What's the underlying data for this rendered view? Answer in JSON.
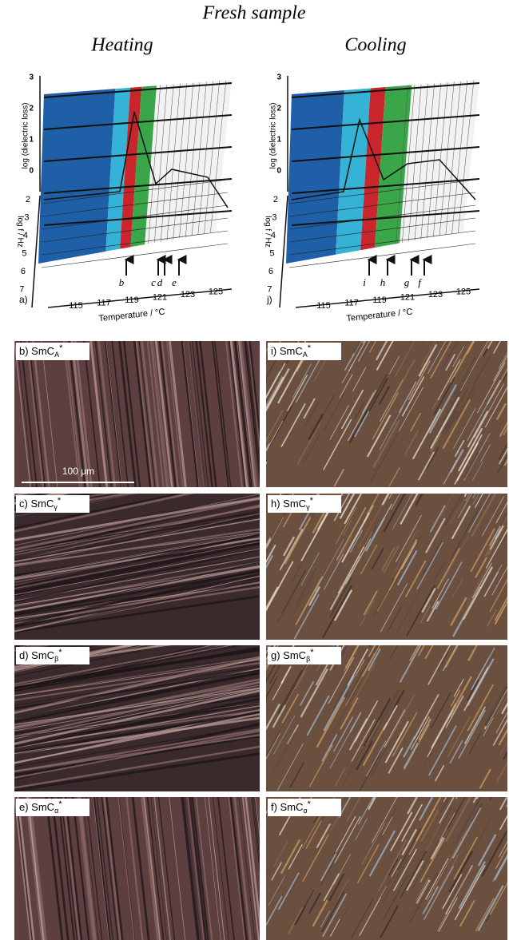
{
  "header": {
    "title": "Fresh sample",
    "columns": [
      "Heating",
      "Cooling"
    ]
  },
  "plots": [
    {
      "label": "a)",
      "y_axis_label": "log (dielectric loss)",
      "depth_axis_label": "log f / Hz",
      "x_axis_label": "Temperature / °C",
      "y_ticks": [
        "3",
        "2",
        "1",
        "0"
      ],
      "depth_ticks": [
        "2",
        "3",
        "4",
        "5",
        "6",
        "7"
      ],
      "x_ticks": [
        "115",
        "117",
        "119",
        "121",
        "123",
        "125"
      ],
      "arrows": [
        "b",
        "c",
        "d",
        "e"
      ]
    },
    {
      "label": "j)",
      "y_axis_label": "log (dielectric loss)",
      "depth_axis_label": "log f / Hz",
      "x_axis_label": "Temperature / °C",
      "y_ticks": [
        "3",
        "2",
        "1",
        "0"
      ],
      "depth_ticks": [
        "2",
        "3",
        "4",
        "5",
        "6",
        "7"
      ],
      "x_ticks": [
        "115",
        "117",
        "119",
        "121",
        "123",
        "125"
      ],
      "arrows": [
        "i",
        "h",
        "g",
        "f"
      ]
    }
  ],
  "micrographs": [
    {
      "label": "b) SmC",
      "sub": "A",
      "sup": "*"
    },
    {
      "label": "i) SmC",
      "sub": "A",
      "sup": "*"
    },
    {
      "label": "c) SmC",
      "sub": "γ",
      "sup": "*"
    },
    {
      "label": "h) SmC",
      "sub": "γ",
      "sup": "*"
    },
    {
      "label": "d) SmC",
      "sub": "β",
      "sup": "*"
    },
    {
      "label": "g) SmC",
      "sub": "β",
      "sup": "*"
    },
    {
      "label": "e) SmC",
      "sub": "α",
      "sup": "*"
    },
    {
      "label": "f) SmC",
      "sub": "α",
      "sup": "*"
    }
  ],
  "scale_bar": "100 μm"
}
